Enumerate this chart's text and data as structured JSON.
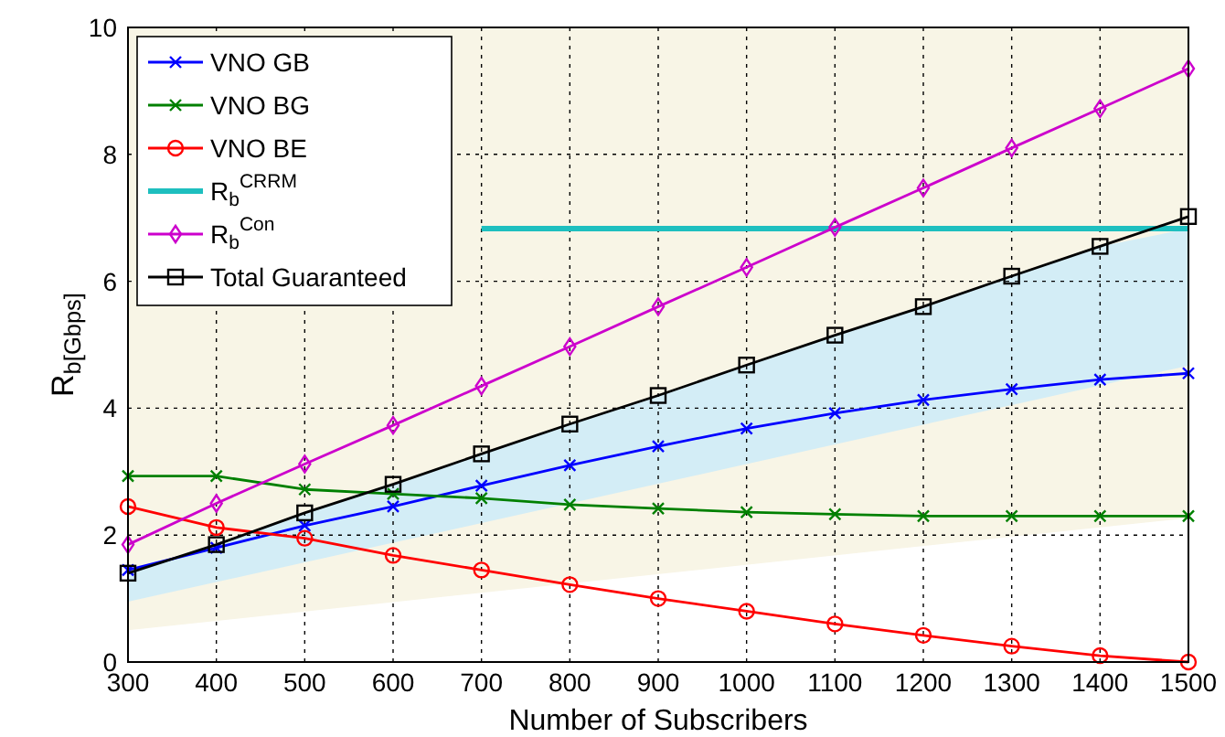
{
  "chart_data": {
    "type": "line",
    "xlabel": "Number of Subscribers",
    "ylabel": "R$_{b[Gbps]}$",
    "x": [
      300,
      400,
      500,
      600,
      700,
      800,
      900,
      1000,
      1100,
      1200,
      1300,
      1400,
      1500
    ],
    "xlim": [
      300,
      1500
    ],
    "xticks": [
      300,
      400,
      500,
      600,
      700,
      800,
      900,
      1000,
      1100,
      1200,
      1300,
      1400,
      1500
    ],
    "ylim": [
      0,
      10
    ],
    "yticks": [
      0,
      2,
      4,
      6,
      8,
      10
    ],
    "grid": true,
    "legend": "top left",
    "line_style": "solid",
    "series": [
      {
        "type": "area",
        "color": "#ffffff",
        "x": [
          300,
          1500
        ],
        "values": [
          0.5,
          2.27
        ]
      },
      {
        "name": "VNO GB",
        "color": "#0000ff",
        "marker": "cross",
        "values": [
          1.45,
          1.8,
          2.15,
          2.45,
          2.78,
          3.1,
          3.4,
          3.68,
          3.92,
          4.13,
          4.3,
          4.45,
          4.55
        ]
      },
      {
        "name": "VNO BG",
        "color": "#008000",
        "marker": "cross",
        "values": [
          2.93,
          2.93,
          2.72,
          2.65,
          2.58,
          2.48,
          2.42,
          2.36,
          2.33,
          2.3,
          2.3,
          2.3,
          2.3
        ]
      },
      {
        "name": "VNO BE",
        "color": "#ff0000",
        "marker": "circle",
        "values": [
          2.45,
          2.12,
          1.95,
          1.68,
          1.45,
          1.22,
          1.0,
          0.8,
          0.6,
          0.42,
          0.25,
          0.1,
          0.0
        ]
      },
      {
        "name": "R$_{b}$$^{CRRM}$",
        "color": "#1ebfbf",
        "marker": "none",
        "values": [
          null,
          null,
          null,
          null,
          6.83,
          6.83,
          6.83,
          6.83,
          6.83,
          6.83,
          6.83,
          6.83,
          6.83
        ]
      },
      {
        "name": "R$_{b}$$^{Con}$",
        "color": "#cc00cc",
        "marker": "diamond",
        "values": [
          1.85,
          2.5,
          3.12,
          3.73,
          4.35,
          4.97,
          5.6,
          6.22,
          6.85,
          7.47,
          8.1,
          8.72,
          9.35
        ]
      },
      {
        "name": "Total Guaranteed",
        "color": "#000000",
        "marker": "square",
        "values": [
          1.4,
          1.85,
          2.35,
          2.8,
          3.28,
          3.75,
          4.2,
          4.68,
          5.15,
          5.6,
          6.08,
          6.55,
          7.02
        ],
        "lower": [
          0.95,
          1.26,
          1.57,
          1.88,
          2.19,
          2.5,
          2.81,
          3.12,
          3.43,
          3.74,
          4.05,
          4.36,
          4.67
        ],
        "upper": [
          1.4,
          1.85,
          2.35,
          2.8,
          3.28,
          3.75,
          4.2,
          4.68,
          5.15,
          5.6,
          6.08,
          6.55,
          6.83
        ]
      }
    ]
  }
}
